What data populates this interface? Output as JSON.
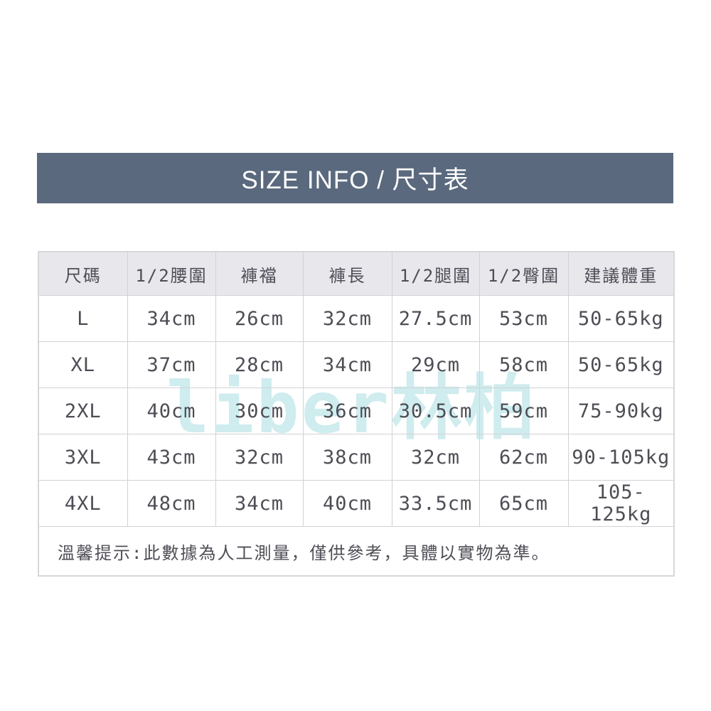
{
  "banner": {
    "title": "SIZE INFO / 尺寸表",
    "bg_color": "#5a697d",
    "text_color": "#ffffff"
  },
  "watermark": {
    "text": "liber林柏",
    "color": "#cfecee"
  },
  "size_table": {
    "headers": [
      "尺碼",
      "1/2腰圍",
      "褲襠",
      "褲長",
      "1/2腿圍",
      "1/2臀圍",
      "建議體重"
    ],
    "rows": [
      [
        "L",
        "34cm",
        "26cm",
        "32cm",
        "27.5cm",
        "53cm",
        "50-65kg"
      ],
      [
        "XL",
        "37cm",
        "28cm",
        "34cm",
        "29cm",
        "58cm",
        "50-65kg"
      ],
      [
        "2XL",
        "40cm",
        "30cm",
        "36cm",
        "30.5cm",
        "59cm",
        "75-90kg"
      ],
      [
        "3XL",
        "43cm",
        "32cm",
        "38cm",
        "32cm",
        "62cm",
        "90-105kg"
      ],
      [
        "4XL",
        "48cm",
        "34cm",
        "40cm",
        "33.5cm",
        "65cm",
        "105-125kg"
      ]
    ],
    "note": "溫馨提示:此數據為人工測量，僅供參考，具體以實物為準。",
    "header_bg": "#e8e7ec",
    "border_color": "#d2d2d6",
    "text_color": "#4d4d55"
  }
}
